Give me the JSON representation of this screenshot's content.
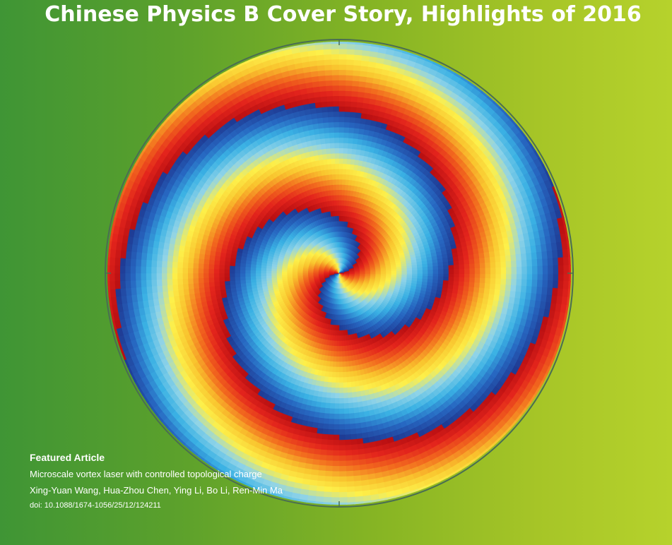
{
  "header": {
    "title": "Chinese Physics B Cover Story, Highlights of 2016"
  },
  "featured": {
    "heading": "Featured Article",
    "article_title": "Microscale vortex laser with controlled topological charge",
    "authors": "Xing-Yuan Wang, Hua-Zhou Chen, Ying Li, Bo Li, Ren-Min Ma",
    "doi": "doi: 10.1088/1674-1056/25/12/124211"
  },
  "colors": {
    "background_left": "#3f9535",
    "background_right": "#b6d22c",
    "phase_palette": [
      "#b80f12",
      "#e3241c",
      "#f26a1e",
      "#f9c42e",
      "#fdf04a",
      "#8fd3e8",
      "#3ab1e4",
      "#2767c1",
      "#1f3a93"
    ]
  }
}
